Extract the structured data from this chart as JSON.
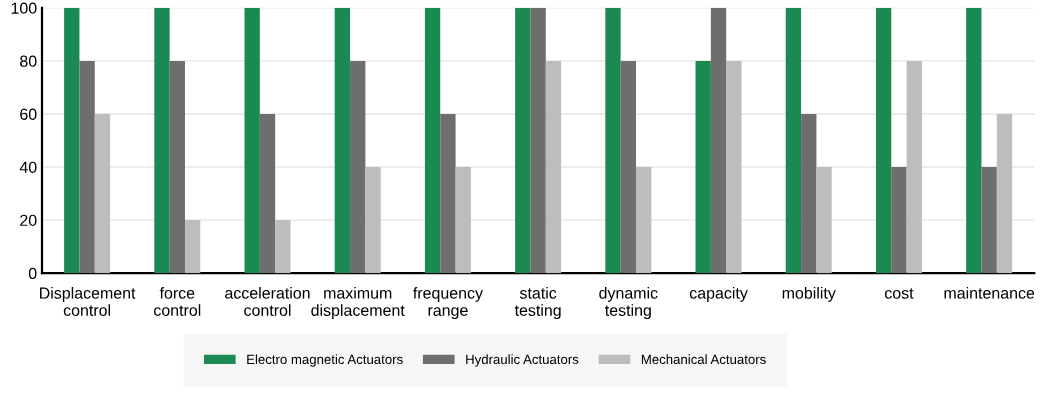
{
  "chart_data": {
    "type": "bar",
    "categories": [
      "Displacement\ncontrol",
      "force\ncontrol",
      "acceleration\ncontrol",
      "maximum\ndisplacement",
      "frequency\nrange",
      "static\ntesting",
      "dynamic\ntesting",
      "capacity",
      "mobility",
      "cost",
      "maintenance"
    ],
    "series": [
      {
        "name": "Electro magnetic Actuators",
        "color": "#1a8a52",
        "values": [
          100,
          100,
          100,
          100,
          100,
          100,
          100,
          80,
          100,
          100,
          100
        ]
      },
      {
        "name": "Hydraulic Actuators",
        "color": "#6e6e6e",
        "values": [
          80,
          80,
          60,
          80,
          60,
          100,
          80,
          100,
          60,
          40,
          40
        ]
      },
      {
        "name": "Mechanical Actuators",
        "color": "#bdbdbd",
        "values": [
          60,
          20,
          20,
          40,
          40,
          80,
          40,
          80,
          40,
          80,
          60
        ]
      }
    ],
    "ylim": [
      0,
      100
    ],
    "yticks": [
      0,
      20,
      40,
      60,
      80,
      100
    ],
    "grid": "y",
    "legend": "bottom"
  }
}
